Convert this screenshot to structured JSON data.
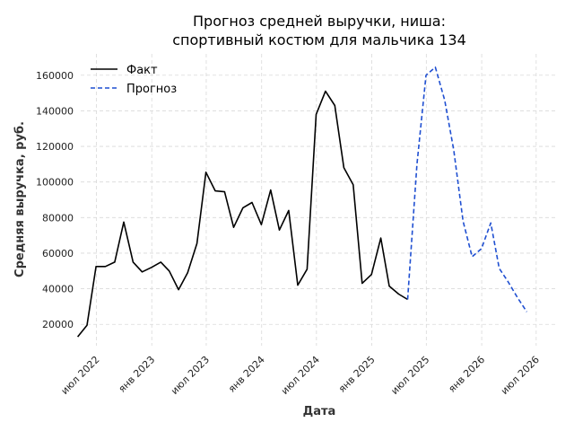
{
  "chart_data": {
    "type": "line",
    "title_lines": [
      "Прогноз средней выручки, ниша:",
      "спортивный костюм для мальчика 134"
    ],
    "xlabel": "Дата",
    "ylabel": "Средняя выручка, руб.",
    "x_ticks": [
      {
        "date": "2022-07-01",
        "label": "июл 2022"
      },
      {
        "date": "2023-01-01",
        "label": "янв 2023"
      },
      {
        "date": "2023-07-01",
        "label": "июл 2023"
      },
      {
        "date": "2024-01-01",
        "label": "янв 2024"
      },
      {
        "date": "2024-07-01",
        "label": "июл 2024"
      },
      {
        "date": "2025-01-01",
        "label": "янв 2025"
      },
      {
        "date": "2025-07-01",
        "label": "июл 2025"
      },
      {
        "date": "2026-01-01",
        "label": "янв 2026"
      },
      {
        "date": "2026-07-01",
        "label": "июл 2026"
      }
    ],
    "y_ticks": [
      20000,
      40000,
      60000,
      80000,
      100000,
      120000,
      140000,
      160000
    ],
    "xlim": [
      "2022-05-10",
      "2026-09-05"
    ],
    "ylim": [
      8000,
      172000
    ],
    "grid": true,
    "legend_position": "top-left",
    "series": [
      {
        "name": "Факт",
        "color": "#000000",
        "dashed": false,
        "points": [
          [
            "2022-04-30",
            13000
          ],
          [
            "2022-05-31",
            19500
          ],
          [
            "2022-06-30",
            52500
          ],
          [
            "2022-07-31",
            52500
          ],
          [
            "2022-08-31",
            55000
          ],
          [
            "2022-09-30",
            77500
          ],
          [
            "2022-10-31",
            55000
          ],
          [
            "2022-11-30",
            49500
          ],
          [
            "2022-12-31",
            52000
          ],
          [
            "2023-01-31",
            55000
          ],
          [
            "2023-02-28",
            50000
          ],
          [
            "2023-03-31",
            39500
          ],
          [
            "2023-04-30",
            49000
          ],
          [
            "2023-05-31",
            65500
          ],
          [
            "2023-06-30",
            105500
          ],
          [
            "2023-07-31",
            95000
          ],
          [
            "2023-08-31",
            94500
          ],
          [
            "2023-09-30",
            74500
          ],
          [
            "2023-10-31",
            85500
          ],
          [
            "2023-11-30",
            88500
          ],
          [
            "2023-12-31",
            76000
          ],
          [
            "2024-01-31",
            95500
          ],
          [
            "2024-02-29",
            73000
          ],
          [
            "2024-03-31",
            84000
          ],
          [
            "2024-04-30",
            42000
          ],
          [
            "2024-05-31",
            51000
          ],
          [
            "2024-06-30",
            138000
          ],
          [
            "2024-07-31",
            151000
          ],
          [
            "2024-08-31",
            143000
          ],
          [
            "2024-09-30",
            108000
          ],
          [
            "2024-10-31",
            98500
          ],
          [
            "2024-11-30",
            43000
          ],
          [
            "2024-12-31",
            48000
          ],
          [
            "2025-01-31",
            68500
          ],
          [
            "2025-02-28",
            41500
          ],
          [
            "2025-03-31",
            37000
          ],
          [
            "2025-04-30",
            34000
          ]
        ]
      },
      {
        "name": "Прогноз",
        "color": "#1f4fd1",
        "dashed": true,
        "points": [
          [
            "2025-04-30",
            34000
          ],
          [
            "2025-05-31",
            110000
          ],
          [
            "2025-06-30",
            160000
          ],
          [
            "2025-07-31",
            164500
          ],
          [
            "2025-08-31",
            146000
          ],
          [
            "2025-09-30",
            118000
          ],
          [
            "2025-10-31",
            78000
          ],
          [
            "2025-11-30",
            58000
          ],
          [
            "2025-12-31",
            62500
          ],
          [
            "2026-01-31",
            77000
          ],
          [
            "2026-02-28",
            51500
          ],
          [
            "2026-03-31",
            43500
          ],
          [
            "2026-04-30",
            35000
          ],
          [
            "2026-05-31",
            27000
          ]
        ]
      }
    ]
  }
}
